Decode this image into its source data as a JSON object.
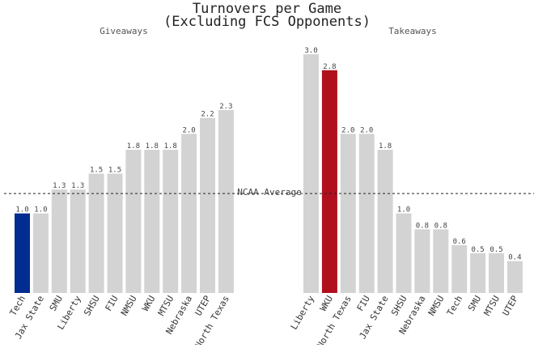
{
  "chart_data": [
    {
      "type": "bar",
      "title": "Turnovers per Game\n(Excluding FCS Opponents)",
      "subtitle": "Giveaways",
      "categories": [
        "Tech",
        "Jax State",
        "SMU",
        "Liberty",
        "SHSU",
        "FIU",
        "NMSU",
        "WKU",
        "MTSU",
        "Nebraska",
        "UTEP",
        "North Texas"
      ],
      "values": [
        1.0,
        1.0,
        1.3,
        1.3,
        1.5,
        1.5,
        1.8,
        1.8,
        1.8,
        2.0,
        2.2,
        2.3
      ],
      "value_labels": [
        "1.0",
        "1.0",
        "1.3",
        "1.3",
        "1.5",
        "1.5",
        "1.8",
        "1.8",
        "1.8",
        "2.0",
        "2.2",
        "2.3"
      ],
      "highlight": "Tech",
      "highlight_color": "#002d8f",
      "bar_color": "#d3d3d3",
      "ylim": [
        0,
        3.0
      ],
      "grid": false,
      "reference_line": {
        "label": "NCAA Average",
        "value": 1.25
      }
    },
    {
      "type": "bar",
      "subtitle": "Takeaways",
      "categories": [
        "Liberty",
        "WKU",
        "North Texas",
        "FIU",
        "Jax State",
        "SHSU",
        "Nebraska",
        "NMSU",
        "Tech",
        "SMU",
        "MTSU",
        "UTEP"
      ],
      "values": [
        3.0,
        2.8,
        2.0,
        2.0,
        1.8,
        1.0,
        0.8,
        0.8,
        0.6,
        0.5,
        0.5,
        0.4
      ],
      "value_labels": [
        "3.0",
        "2.8",
        "2.0",
        "2.0",
        "1.8",
        "1.0",
        "0.8",
        "0.8",
        "0.6",
        "0.5",
        "0.5",
        "0.4"
      ],
      "highlight": "WKU",
      "highlight_color": "#b0101c",
      "bar_color": "#d3d3d3",
      "ylim": [
        0,
        3.0
      ],
      "grid": false
    }
  ]
}
